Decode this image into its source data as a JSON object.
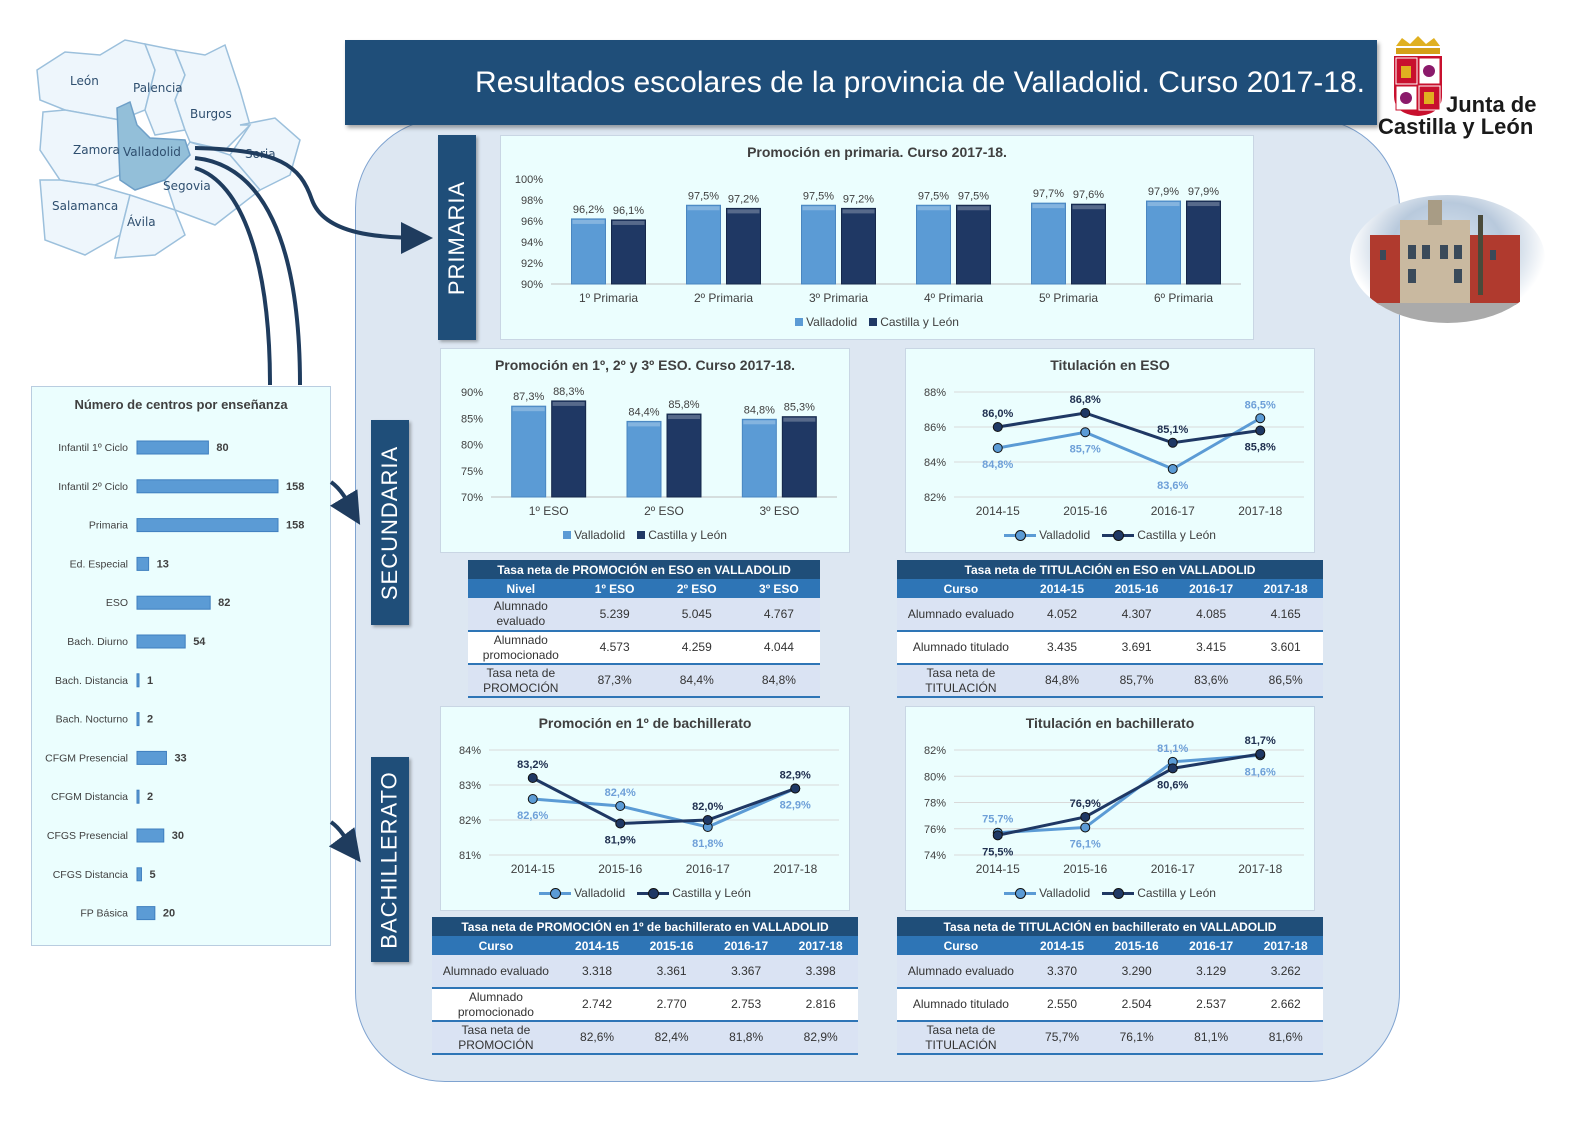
{
  "header": {
    "title": "Resultados escolares de la provincia de Valladolid. Curso 2017-18."
  },
  "logo": {
    "line1": "Junta de",
    "line2": "Castilla y León"
  },
  "sections": {
    "primaria": "PRIMARIA",
    "secundaria": "SECUNDARIA",
    "bachillerato": "BACHILLERATO"
  },
  "map": {
    "provinces": [
      "León",
      "Palencia",
      "Burgos",
      "Zamora",
      "Valladolid",
      "Soria",
      "Segovia",
      "Salamanca",
      "Ávila"
    ],
    "highlight": "Valladolid"
  },
  "colors": {
    "valladolid": "#5b9bd5",
    "castilla_y_leon": "#1f3864",
    "banner": "#1f4e79",
    "table_header": "#2e75b6"
  },
  "chart_data": [
    {
      "id": "primaria",
      "type": "bar",
      "title": "Promoción en primaria. Curso 2017-18.",
      "categories": [
        "1º Primaria",
        "2º Primaria",
        "3º Primaria",
        "4º Primaria",
        "5º Primaria",
        "6º Primaria"
      ],
      "series": [
        {
          "name": "Valladolid",
          "values": [
            96.2,
            97.5,
            97.5,
            97.5,
            97.7,
            97.9
          ],
          "labels": [
            "96,2%",
            "97,5%",
            "97,5%",
            "97,5%",
            "97,7%",
            "97,9%"
          ]
        },
        {
          "name": "Castilla y León",
          "values": [
            96.1,
            97.2,
            97.2,
            97.5,
            97.6,
            97.9
          ],
          "labels": [
            "96,1%",
            "97,2%",
            "97,2%",
            "97,5%",
            "97,6%",
            "97,9%"
          ]
        }
      ],
      "ylim": [
        90,
        100
      ],
      "yticks": [
        "90%",
        "92%",
        "94%",
        "96%",
        "98%",
        "100%"
      ],
      "legend": "bottom",
      "grid": false
    },
    {
      "id": "eso_prom",
      "type": "bar",
      "title": "Promoción en 1º, 2º y 3º ESO. Curso 2017-18.",
      "categories": [
        "1º ESO",
        "2º ESO",
        "3º ESO"
      ],
      "series": [
        {
          "name": "Valladolid",
          "values": [
            87.3,
            84.4,
            84.8
          ],
          "labels": [
            "87,3%",
            "84,4%",
            "84,8%"
          ]
        },
        {
          "name": "Castilla y León",
          "values": [
            88.3,
            85.8,
            85.3
          ],
          "labels": [
            "88,3%",
            "85,8%",
            "85,3%"
          ]
        }
      ],
      "ylim": [
        70,
        90
      ],
      "yticks": [
        "70%",
        "75%",
        "80%",
        "85%",
        "90%"
      ],
      "legend": "bottom",
      "grid": false
    },
    {
      "id": "eso_tit",
      "type": "line",
      "title": "Titulación en ESO",
      "categories": [
        "2014-15",
        "2015-16",
        "2016-17",
        "2017-18"
      ],
      "series": [
        {
          "name": "Valladolid",
          "values": [
            84.8,
            85.7,
            83.6,
            86.5
          ],
          "labels": [
            "84,8%",
            "85,7%",
            "83,6%",
            "86,5%"
          ]
        },
        {
          "name": "Castilla y León",
          "values": [
            86.0,
            86.8,
            85.1,
            85.8
          ],
          "labels": [
            "86,0%",
            "86,8%",
            "85,1%",
            "85,8%"
          ]
        }
      ],
      "ylim": [
        82,
        88
      ],
      "yticks": [
        "82%",
        "84%",
        "86%",
        "88%"
      ],
      "legend": "bottom",
      "grid": true
    },
    {
      "id": "bach_prom",
      "type": "line",
      "title": "Promoción en 1º de bachillerato",
      "categories": [
        "2014-15",
        "2015-16",
        "2016-17",
        "2017-18"
      ],
      "series": [
        {
          "name": "Valladolid",
          "values": [
            82.6,
            82.4,
            81.8,
            82.9
          ],
          "labels": [
            "82,6%",
            "82,4%",
            "81,8%",
            "82,9%"
          ]
        },
        {
          "name": "Castilla y León",
          "values": [
            83.2,
            81.9,
            82.0,
            82.9
          ],
          "labels": [
            "83,2%",
            "81,9%",
            "82,0%",
            "82,9%"
          ]
        }
      ],
      "ylim": [
        81,
        84
      ],
      "yticks": [
        "81%",
        "82%",
        "83%",
        "84%"
      ],
      "legend": "bottom",
      "grid": true
    },
    {
      "id": "bach_tit",
      "type": "line",
      "title": "Titulación en bachillerato",
      "categories": [
        "2014-15",
        "2015-16",
        "2016-17",
        "2017-18"
      ],
      "series": [
        {
          "name": "Valladolid",
          "values": [
            75.7,
            76.1,
            81.1,
            81.6
          ],
          "labels": [
            "75,7%",
            "76,1%",
            "81,1%",
            "81,6%"
          ]
        },
        {
          "name": "Castilla y León",
          "values": [
            75.5,
            76.9,
            80.6,
            81.7
          ],
          "labels": [
            "75,5%",
            "76,9%",
            "80,6%",
            "81,7%"
          ]
        }
      ],
      "ylim": [
        74,
        82
      ],
      "yticks": [
        "74%",
        "76%",
        "78%",
        "80%",
        "82%"
      ],
      "legend": "bottom",
      "grid": true
    },
    {
      "id": "centros",
      "type": "bar",
      "orientation": "horizontal",
      "title": "Número de centros por enseñanza",
      "categories": [
        "Infantil 1º Ciclo",
        "Infantil 2º Ciclo",
        "Primaria",
        "Ed. Especial",
        "ESO",
        "Bach. Diurno",
        "Bach. Distancia",
        "Bach. Nocturno",
        "CFGM Presencial",
        "CFGM Distancia",
        "CFGS Presencial",
        "CFGS Distancia",
        "FP Básica"
      ],
      "values": [
        80,
        158,
        158,
        13,
        82,
        54,
        1,
        2,
        33,
        2,
        30,
        5,
        20
      ]
    }
  ],
  "tables": [
    {
      "id": "t_eso_prom",
      "title": "Tasa neta de PROMOCIÓN en ESO en VALLADOLID",
      "headers": [
        "Nivel",
        "1º ESO",
        "2º ESO",
        "3º ESO"
      ],
      "rows": [
        [
          "Alumnado evaluado",
          "5.239",
          "5.045",
          "4.767"
        ],
        [
          "Alumnado promocionado",
          "4.573",
          "4.259",
          "4.044"
        ],
        [
          "Tasa neta de PROMOCIÓN",
          "87,3%",
          "84,4%",
          "84,8%"
        ]
      ]
    },
    {
      "id": "t_eso_tit",
      "title": "Tasa neta de TITULACIÓN en ESO en VALLADOLID",
      "headers": [
        "Curso",
        "2014-15",
        "2015-16",
        "2016-17",
        "2017-18"
      ],
      "rows": [
        [
          "Alumnado evaluado",
          "4.052",
          "4.307",
          "4.085",
          "4.165"
        ],
        [
          "Alumnado titulado",
          "3.435",
          "3.691",
          "3.415",
          "3.601"
        ],
        [
          "Tasa neta de TITULACIÓN",
          "84,8%",
          "85,7%",
          "83,6%",
          "86,5%"
        ]
      ]
    },
    {
      "id": "t_bach_prom",
      "title": "Tasa neta de PROMOCIÓN en 1º de bachillerato en VALLADOLID",
      "headers": [
        "Curso",
        "2014-15",
        "2015-16",
        "2016-17",
        "2017-18"
      ],
      "rows": [
        [
          "Alumnado evaluado",
          "3.318",
          "3.361",
          "3.367",
          "3.398"
        ],
        [
          "Alumnado promocionado",
          "2.742",
          "2.770",
          "2.753",
          "2.816"
        ],
        [
          "Tasa neta de PROMOCIÓN",
          "82,6%",
          "82,4%",
          "81,8%",
          "82,9%"
        ]
      ]
    },
    {
      "id": "t_bach_tit",
      "title": "Tasa neta de TITULACIÓN en bachillerato en VALLADOLID",
      "headers": [
        "Curso",
        "2014-15",
        "2015-16",
        "2016-17",
        "2017-18"
      ],
      "rows": [
        [
          "Alumnado evaluado",
          "3.370",
          "3.290",
          "3.129",
          "3.262"
        ],
        [
          "Alumnado titulado",
          "2.550",
          "2.504",
          "2.537",
          "2.662"
        ],
        [
          "Tasa neta de TITULACIÓN",
          "75,7%",
          "76,1%",
          "81,1%",
          "81,6%"
        ]
      ]
    }
  ]
}
